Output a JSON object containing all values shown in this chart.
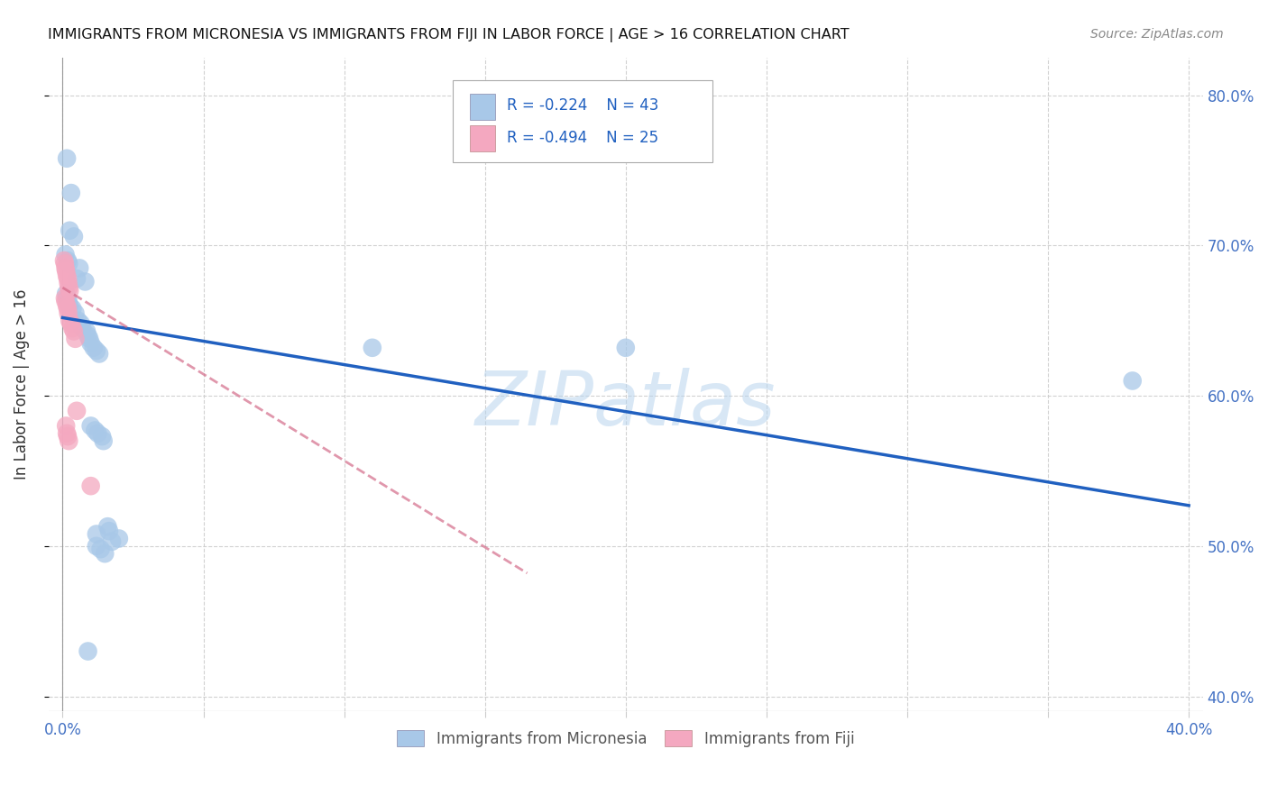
{
  "title": "IMMIGRANTS FROM MICRONESIA VS IMMIGRANTS FROM FIJI IN LABOR FORCE | AGE > 16 CORRELATION CHART",
  "source": "Source: ZipAtlas.com",
  "ylabel": "In Labor Force | Age > 16",
  "watermark": "ZIPatlas",
  "legend_blue_r": "R = -0.224",
  "legend_blue_n": "N = 43",
  "legend_pink_r": "R = -0.494",
  "legend_pink_n": "N = 25",
  "micronesia_color": "#a8c8e8",
  "fiji_color": "#f4a8c0",
  "trend_blue": "#2060c0",
  "trend_pink_dash": "#d06080",
  "background": "#ffffff",
  "grid_color": "#cccccc",
  "blue_scatter": [
    [
      0.0015,
      0.758
    ],
    [
      0.003,
      0.735
    ],
    [
      0.0025,
      0.71
    ],
    [
      0.004,
      0.706
    ],
    [
      0.001,
      0.694
    ],
    [
      0.0018,
      0.69
    ],
    [
      0.0022,
      0.688
    ],
    [
      0.006,
      0.685
    ],
    [
      0.005,
      0.678
    ],
    [
      0.008,
      0.676
    ],
    [
      0.0012,
      0.668
    ],
    [
      0.0015,
      0.665
    ],
    [
      0.002,
      0.663
    ],
    [
      0.0025,
      0.66
    ],
    [
      0.0035,
      0.658
    ],
    [
      0.0045,
      0.655
    ],
    [
      0.0055,
      0.65
    ],
    [
      0.0065,
      0.648
    ],
    [
      0.007,
      0.645
    ],
    [
      0.0085,
      0.643
    ],
    [
      0.009,
      0.64
    ],
    [
      0.0095,
      0.638
    ],
    [
      0.01,
      0.635
    ],
    [
      0.011,
      0.632
    ],
    [
      0.012,
      0.63
    ],
    [
      0.013,
      0.628
    ],
    [
      0.01,
      0.58
    ],
    [
      0.0115,
      0.577
    ],
    [
      0.0125,
      0.575
    ],
    [
      0.014,
      0.573
    ],
    [
      0.0145,
      0.57
    ],
    [
      0.016,
      0.513
    ],
    [
      0.0165,
      0.51
    ],
    [
      0.012,
      0.508
    ],
    [
      0.02,
      0.505
    ],
    [
      0.0175,
      0.503
    ],
    [
      0.012,
      0.5
    ],
    [
      0.0135,
      0.498
    ],
    [
      0.015,
      0.495
    ],
    [
      0.009,
      0.43
    ],
    [
      0.2,
      0.632
    ],
    [
      0.38,
      0.61
    ],
    [
      0.11,
      0.632
    ]
  ],
  "fiji_scatter": [
    [
      0.0005,
      0.69
    ],
    [
      0.0008,
      0.688
    ],
    [
      0.001,
      0.685
    ],
    [
      0.0012,
      0.683
    ],
    [
      0.0015,
      0.68
    ],
    [
      0.0018,
      0.678
    ],
    [
      0.002,
      0.675
    ],
    [
      0.0022,
      0.672
    ],
    [
      0.0025,
      0.67
    ],
    [
      0.0008,
      0.665
    ],
    [
      0.001,
      0.663
    ],
    [
      0.0015,
      0.66
    ],
    [
      0.0018,
      0.658
    ],
    [
      0.002,
      0.655
    ],
    [
      0.0025,
      0.65
    ],
    [
      0.003,
      0.648
    ],
    [
      0.0035,
      0.645
    ],
    [
      0.004,
      0.643
    ],
    [
      0.0045,
      0.638
    ],
    [
      0.005,
      0.59
    ],
    [
      0.0012,
      0.58
    ],
    [
      0.0015,
      0.575
    ],
    [
      0.0018,
      0.573
    ],
    [
      0.0022,
      0.57
    ],
    [
      0.01,
      0.54
    ]
  ],
  "blue_trend_x": [
    0.0,
    0.4
  ],
  "blue_trend_y": [
    0.652,
    0.527
  ],
  "pink_trend_x": [
    0.0,
    0.165
  ],
  "pink_trend_y": [
    0.672,
    0.482
  ],
  "xlim": [
    -0.005,
    0.405
  ],
  "ylim": [
    0.39,
    0.825
  ],
  "xtick_positions": [
    0.0,
    0.05,
    0.1,
    0.15,
    0.2,
    0.25,
    0.3,
    0.35,
    0.4
  ],
  "xtick_labels_show": [
    "0.0%",
    "",
    "",
    "",
    "",
    "",
    "",
    "",
    "40.0%"
  ],
  "ytick_positions": [
    0.4,
    0.5,
    0.6,
    0.7,
    0.8
  ],
  "ytick_labels": [
    "40.0%",
    "50.0%",
    "60.0%",
    "70.0%",
    "80.0%"
  ]
}
